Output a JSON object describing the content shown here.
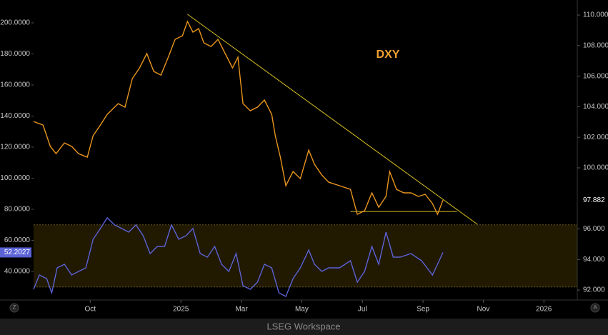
{
  "chart_data": {
    "type": "line",
    "title": "DXY",
    "title_color": "#f0a030",
    "xlim": [
      2024.594,
      2026.092
    ],
    "xticks": [
      {
        "value": 2024.75,
        "label": "Oct"
      },
      {
        "value": 2025.0,
        "label": "2025"
      },
      {
        "value": 2025.167,
        "label": "Mar"
      },
      {
        "value": 2025.333,
        "label": "May"
      },
      {
        "value": 2025.5,
        "label": "Jul"
      },
      {
        "value": 2025.667,
        "label": "Sep"
      },
      {
        "value": 2025.833,
        "label": "Nov"
      },
      {
        "value": 2026.0,
        "label": "2026"
      }
    ],
    "ylim": [
      21.6,
      212.4
    ],
    "yticks": [
      {
        "value": 40,
        "label": "40.0000"
      },
      {
        "value": 60,
        "label": "60.0000"
      },
      {
        "value": 80,
        "label": "80.0000"
      },
      {
        "value": 100,
        "label": "100.0000"
      },
      {
        "value": 120,
        "label": "120.0000"
      },
      {
        "value": 140,
        "label": "140.0000"
      },
      {
        "value": 160,
        "label": "160.0000"
      },
      {
        "value": 180,
        "label": "180.0000"
      },
      {
        "value": 200,
        "label": "200.0000"
      }
    ],
    "y2lim": [
      91.35,
      110.75
    ],
    "y2ticks": [
      {
        "value": 92,
        "label": "92.000"
      },
      {
        "value": 94,
        "label": "94.000"
      },
      {
        "value": 96,
        "label": "96.000"
      },
      {
        "value": 100,
        "label": "100.000"
      },
      {
        "value": 102,
        "label": "102.000"
      },
      {
        "value": 104,
        "label": "104.000"
      },
      {
        "value": 106,
        "label": "106.000"
      },
      {
        "value": 108,
        "label": "108.000"
      },
      {
        "value": 110,
        "label": "110.000"
      }
    ],
    "band": [
      30,
      70
    ],
    "series": [
      {
        "color": "#e8951e",
        "axis": "y2",
        "x": [
          2024.594,
          2024.62,
          2024.64,
          2024.656,
          2024.679,
          2024.699,
          2024.718,
          2024.742,
          2024.758,
          2024.778,
          2024.797,
          2024.827,
          2024.846,
          2024.866,
          2024.886,
          2024.906,
          2024.925,
          2024.945,
          2024.965,
          2024.984,
          2025.004,
          2025.018,
          2025.033,
          2025.049,
          2025.063,
          2025.083,
          2025.102,
          2025.122,
          2025.142,
          2025.157,
          2025.171,
          2025.191,
          2025.211,
          2025.23,
          2025.25,
          2025.26,
          2025.274,
          2025.289,
          2025.309,
          2025.329,
          2025.352,
          2025.368,
          2025.388,
          2025.407,
          2025.437,
          2025.467,
          2025.486,
          2025.506,
          2025.526,
          2025.545,
          2025.565,
          2025.575,
          2025.594,
          2025.614,
          2025.634,
          2025.654,
          2025.673,
          2025.693,
          2025.707,
          2025.722
        ],
        "values": [
          103.03,
          102.8,
          101.4,
          100.93,
          101.63,
          101.4,
          100.93,
          100.7,
          102.1,
          102.8,
          103.5,
          104.2,
          103.97,
          105.84,
          106.54,
          107.48,
          106.31,
          106.07,
          107.24,
          108.41,
          108.64,
          109.58,
          108.88,
          109.11,
          108.18,
          107.94,
          108.41,
          107.48,
          106.54,
          107.24,
          104.2,
          103.74,
          103.97,
          104.44,
          103.5,
          102.1,
          100.7,
          98.83,
          99.76,
          99.29,
          101.16,
          100.23,
          99.53,
          99.06,
          98.83,
          98.59,
          96.96,
          97.19,
          98.36,
          97.42,
          98.13,
          99.76,
          98.59,
          98.36,
          98.36,
          98.13,
          98.27,
          97.66,
          96.96,
          97.882
        ]
      },
      {
        "color": "#5b63d6",
        "axis": "y",
        "x": [
          2024.594,
          2024.61,
          2024.63,
          2024.644,
          2024.659,
          2024.679,
          2024.699,
          2024.718,
          2024.738,
          2024.758,
          2024.778,
          2024.797,
          2024.817,
          2024.837,
          2024.856,
          2024.876,
          2024.896,
          2024.915,
          2024.935,
          2024.955,
          2024.974,
          2024.994,
          2025.014,
          2025.033,
          2025.053,
          2025.073,
          2025.093,
          2025.112,
          2025.132,
          2025.152,
          2025.171,
          2025.191,
          2025.211,
          2025.23,
          2025.25,
          2025.27,
          2025.289,
          2025.309,
          2025.329,
          2025.352,
          2025.368,
          2025.388,
          2025.407,
          2025.437,
          2025.467,
          2025.486,
          2025.506,
          2025.526,
          2025.545,
          2025.565,
          2025.585,
          2025.604,
          2025.634,
          2025.663,
          2025.693,
          2025.707,
          2025.722
        ],
        "values": [
          28.5,
          37.7,
          35.4,
          26.2,
          42.3,
          44.6,
          37.7,
          40.0,
          42.3,
          60.7,
          67.6,
          74.5,
          69.9,
          67.6,
          65.3,
          69.9,
          63.0,
          51.5,
          56.1,
          56.1,
          69.9,
          60.7,
          63.0,
          67.6,
          51.5,
          49.2,
          56.1,
          44.6,
          40.0,
          51.5,
          30.8,
          28.5,
          33.1,
          44.6,
          42.3,
          26.2,
          23.9,
          35.4,
          42.3,
          53.8,
          44.6,
          40.0,
          42.3,
          42.3,
          46.9,
          33.1,
          40.0,
          56.1,
          44.6,
          65.3,
          49.2,
          49.2,
          51.5,
          46.9,
          37.7,
          44.6,
          52.2027
        ]
      }
    ],
    "trendlines": [
      {
        "axis": "y2",
        "x": [
          2025.018,
          2025.817
        ],
        "values": [
          110.05,
          96.3
        ],
        "color": "#d8c020"
      },
      {
        "axis": "y2",
        "x": [
          2025.467,
          2025.76
        ],
        "values": [
          97.14,
          97.14
        ],
        "color": "#d8c020"
      }
    ],
    "buttons": [
      "Z",
      "A"
    ],
    "footer": "LSEG Workspace"
  }
}
